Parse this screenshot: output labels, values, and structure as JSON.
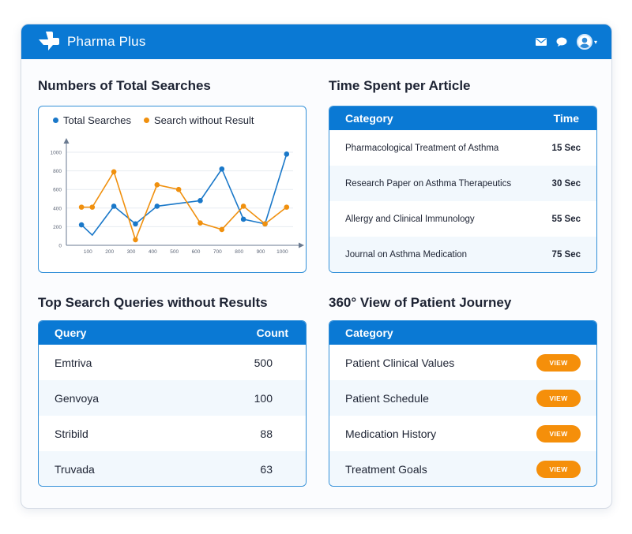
{
  "app": {
    "brand": "Pharma Plus",
    "accent": "#0a79d4",
    "icons": [
      "logo-cross-icon",
      "mail-icon",
      "chat-icon",
      "avatar",
      "chevron-down-icon"
    ]
  },
  "searches": {
    "title": "Numbers of Total Searches"
  },
  "chart_data": {
    "type": "line",
    "title": "",
    "xlabel": "",
    "ylabel": "",
    "x_ticks": [
      "100",
      "200",
      "300",
      "400",
      "500",
      "600",
      "700",
      "800",
      "900",
      "1000"
    ],
    "y_ticks": [
      "0",
      "200",
      "400",
      "600",
      "800",
      "1000"
    ],
    "xlim": [
      0,
      1050
    ],
    "ylim": [
      0,
      1000
    ],
    "legend_position": "top",
    "grid": true,
    "series": [
      {
        "name": "Total Searches",
        "color": "#1a78c9",
        "x": [
          70,
          120,
          220,
          320,
          420,
          620,
          720,
          820,
          920,
          1020
        ],
        "y": [
          220,
          110,
          420,
          230,
          420,
          480,
          820,
          280,
          230,
          980
        ]
      },
      {
        "name": "Search without Result",
        "color": "#f0900e",
        "x": [
          70,
          120,
          220,
          320,
          420,
          520,
          620,
          720,
          820,
          920,
          1020
        ],
        "y": [
          410,
          410,
          790,
          60,
          650,
          600,
          240,
          170,
          420,
          230,
          410
        ]
      }
    ]
  },
  "time_spent": {
    "title": "Time Spent per Article",
    "header": {
      "category": "Category",
      "time": "Time"
    },
    "rows": [
      {
        "category": "Pharmacological Treatment of Asthma",
        "time": "15 Sec"
      },
      {
        "category": "Research Paper on Asthma Therapeutics",
        "time": "30 Sec"
      },
      {
        "category": "Allergy and Clinical Immunology",
        "time": "55 Sec"
      },
      {
        "category": "Journal on Asthma Medication",
        "time": "75 Sec"
      }
    ]
  },
  "queries": {
    "title": "Top Search Queries without Results",
    "header": {
      "query": "Query",
      "count": "Count"
    },
    "rows": [
      {
        "query": "Emtriva",
        "count": "500"
      },
      {
        "query": "Genvoya",
        "count": "100"
      },
      {
        "query": "Stribild",
        "count": "88"
      },
      {
        "query": "Truvada",
        "count": "63"
      }
    ]
  },
  "journey": {
    "title": "360° View of Patient Journey",
    "header": {
      "category": "Category"
    },
    "button_color": "#f58f0a",
    "rows": [
      {
        "category": "Patient Clinical Values",
        "action": "VIEW"
      },
      {
        "category": "Patient Schedule",
        "action": "VIEW"
      },
      {
        "category": "Medication History",
        "action": "VIEW"
      },
      {
        "category": "Treatment Goals",
        "action": "VIEW"
      }
    ]
  }
}
